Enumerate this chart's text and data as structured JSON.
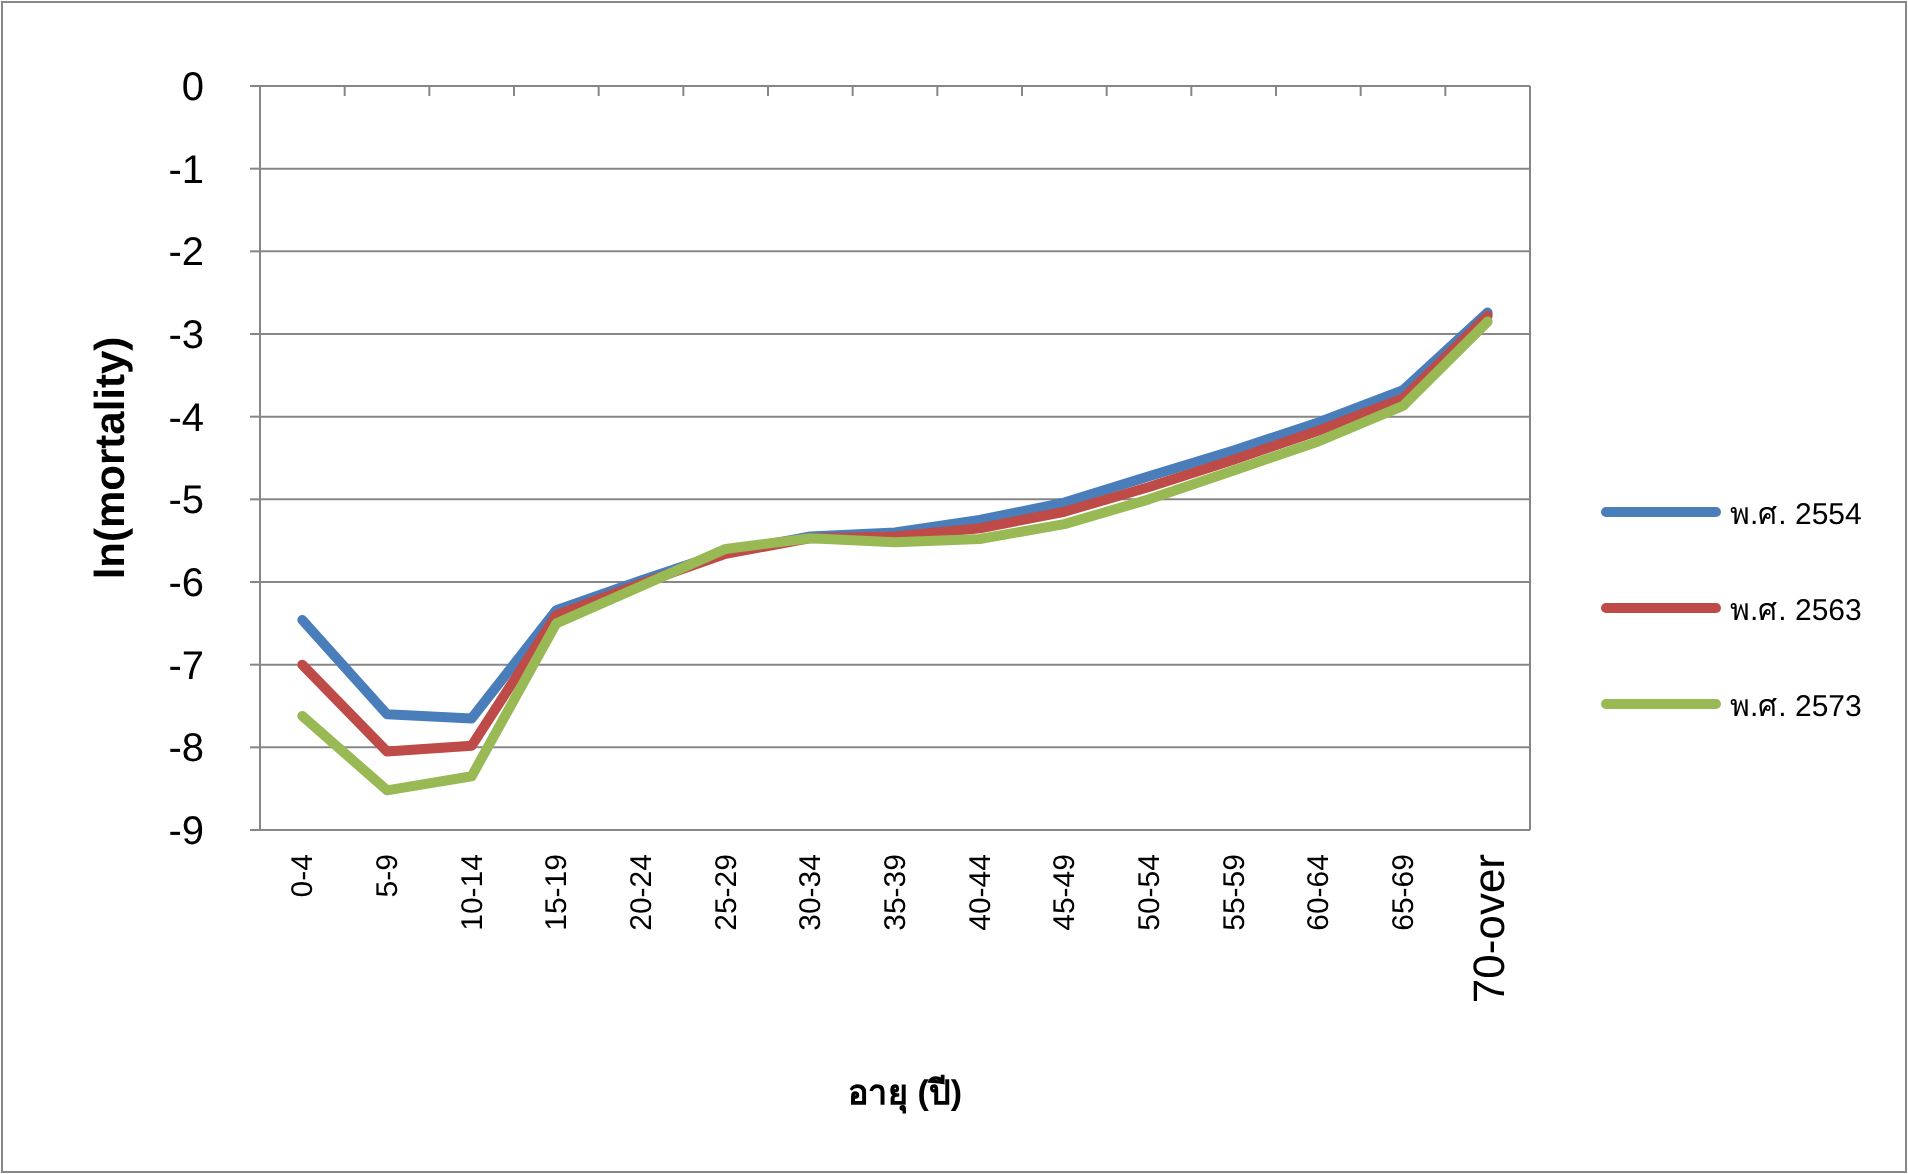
{
  "chart_data": {
    "type": "line",
    "xlabel": "อายุ (ปี)",
    "ylabel": "ln(mortality)",
    "categories": [
      "0-4",
      "5-9",
      "10-14",
      "15-19",
      "20-24",
      "25-29",
      "30-34",
      "35-39",
      "40-44",
      "45-49",
      "50-54",
      "55-59",
      "60-64",
      "65-69",
      "70-over"
    ],
    "series": [
      {
        "name": "พ.ศ. 2554",
        "color": "#4a7ebb",
        "values": [
          -6.46,
          -7.6,
          -7.65,
          -6.34,
          -5.98,
          -5.64,
          -5.45,
          -5.4,
          -5.25,
          -5.04,
          -4.72,
          -4.41,
          -4.07,
          -3.68,
          -2.74
        ]
      },
      {
        "name": "พ.ศ. 2563",
        "color": "#be4b48",
        "values": [
          -7.0,
          -8.05,
          -7.98,
          -6.4,
          -6.02,
          -5.66,
          -5.47,
          -5.45,
          -5.35,
          -5.15,
          -4.85,
          -4.52,
          -4.17,
          -3.78,
          -2.78
        ]
      },
      {
        "name": "พ.ศ. 2573",
        "color": "#98b954",
        "values": [
          -7.62,
          -8.52,
          -8.35,
          -6.5,
          -6.05,
          -5.6,
          -5.47,
          -5.52,
          -5.48,
          -5.3,
          -5.0,
          -4.65,
          -4.3,
          -3.87,
          -2.85
        ]
      }
    ],
    "ylim": [
      -9,
      0
    ],
    "yticks": [
      0,
      -1,
      -2,
      -3,
      -4,
      -5,
      -6,
      -7,
      -8,
      -9
    ],
    "grid": "y",
    "legend": "right",
    "marker": "none",
    "line_style": "solid"
  }
}
